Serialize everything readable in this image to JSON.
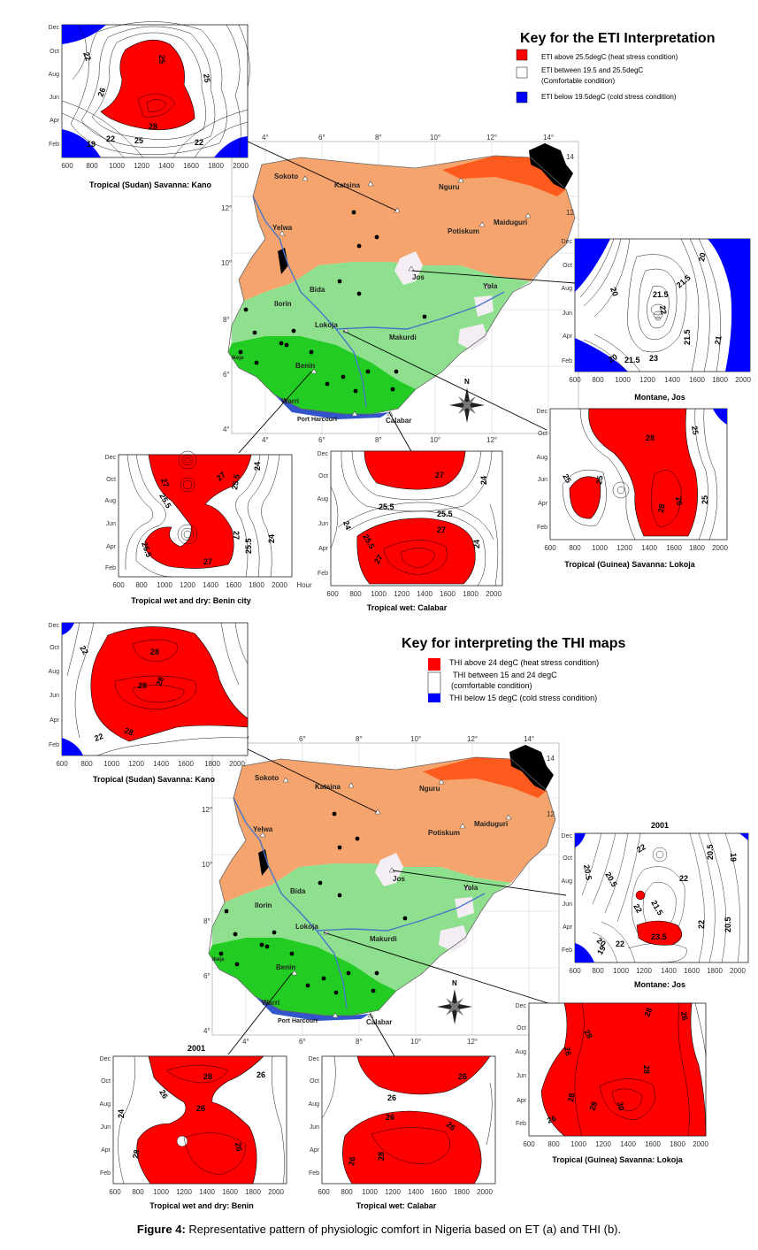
{
  "colors": {
    "heat": "#ff0000",
    "cold": "#0000ff",
    "sudan_savanna": "#f4a46c",
    "sahel": "#ff5a1e",
    "guinea_savanna": "#8ee08e",
    "wet_dry": "#22cc22",
    "tropical_wet": "#3355cc",
    "montane": "#f4eef4",
    "lake": "#000000",
    "river": "#4a76c9"
  },
  "icons": {
    "compass": "compass-rose-icon",
    "city": "triangle-icon",
    "station": "dot-icon"
  },
  "eti": {
    "key": {
      "title": "Key for the ETI Interpretation",
      "heat": "ETI above 25.5degC (heat stress condition)",
      "comfort_line1": "ETI between 19.5 and 25.5degC",
      "comfort_line2": "(Comfortable condition)",
      "cold": "ETI below 19.5degC (cold stress condition)"
    },
    "panels": {
      "kano": {
        "caption": "Tropical (Sudan) Savanna: Kano",
        "labels": [
          "25",
          "22",
          "25",
          "26",
          "28",
          "19",
          "22",
          "25",
          "22"
        ]
      },
      "jos": {
        "caption": "Montane, Jos",
        "labels": [
          "20",
          "21.5",
          "21.5",
          "20",
          "22",
          "21.5",
          "20",
          "21.5",
          "23",
          "21"
        ]
      },
      "benin": {
        "caption": "Tropical wet and dry: Benin city",
        "labels": [
          "27",
          "25.5",
          "27",
          "25.5",
          "24",
          "25.5",
          "27",
          "25.5",
          "24",
          "27"
        ],
        "hour": "Hour"
      },
      "calabar": {
        "caption": "Tropical wet: Calabar",
        "labels": [
          "27",
          "25.5",
          "24",
          "25.5",
          "24",
          "25.5",
          "27",
          "27",
          "24"
        ]
      },
      "lokoja": {
        "caption": "Tropical (Guinea) Savanna: Lokoja",
        "labels": [
          "28",
          "25",
          "25",
          "25",
          "28",
          "26",
          "25"
        ]
      }
    }
  },
  "thi": {
    "key": {
      "title": "Key for interpreting the THI maps",
      "heat": "THI above 24 degC (heat stress condition)",
      "comfort_line1": "THI between 15 and 24 degC",
      "comfort_line2": "(comfortable condition)",
      "cold": "THI below 15 degC (cold stress condition)"
    },
    "panels": {
      "kano": {
        "caption": "Tropical (Sudan) Savanna: Kano",
        "labels": [
          "22",
          "28",
          "28",
          "28",
          "22",
          "28"
        ]
      },
      "jos": {
        "caption": "Montane: Jos",
        "year": "2001",
        "labels": [
          "22",
          "22",
          "20.5",
          "19",
          "20.5",
          "21.5",
          "22",
          "20.5",
          "22",
          "20.5",
          "22",
          "23.5",
          "19",
          "20"
        ]
      },
      "benin": {
        "caption": "Tropical wet and dry: Benin",
        "year": "2001",
        "labels": [
          "28",
          "26",
          "26",
          "24",
          "26",
          "28",
          "26"
        ]
      },
      "calabar": {
        "caption": "Tropical wet: Calabar",
        "labels": [
          "26",
          "26",
          "26",
          "26",
          "28",
          "26"
        ]
      },
      "lokoja": {
        "caption": "Tropical (Guinea) Savanna: Lokoja",
        "labels": [
          "28",
          "28",
          "26",
          "26",
          "28",
          "28",
          "28",
          "30",
          "26"
        ]
      }
    }
  },
  "axes": {
    "months": [
      "Dec",
      "Oct",
      "Aug",
      "Jun",
      "Apr",
      "Feb"
    ],
    "hours": [
      "600",
      "800",
      "1000",
      "1200",
      "1400",
      "1600",
      "1800",
      "2000"
    ]
  },
  "map": {
    "lon_labels": [
      "4°",
      "6°",
      "8°",
      "10°",
      "12°",
      "14°"
    ],
    "lat_labels_left": [
      "12°",
      "10°",
      "8°",
      "6°",
      "4°"
    ],
    "lat_labels_right": [
      "14",
      "12"
    ],
    "cities": [
      "Sokoto",
      "Katsina",
      "Nguru",
      "Maiduguri",
      "Potiskum",
      "Yelwa",
      "Jos",
      "Yola",
      "Bida",
      "Ilorin",
      "Lokoja",
      "Makurdi",
      "Ikeja",
      "Benin",
      "Warri",
      "Port Harcourt",
      "Calabar"
    ],
    "compass_label": "N"
  },
  "caption": {
    "label": "Figure 4:",
    "text": "Representative pattern of physiologic comfort in Nigeria based on ET (a) and THI (b)."
  }
}
